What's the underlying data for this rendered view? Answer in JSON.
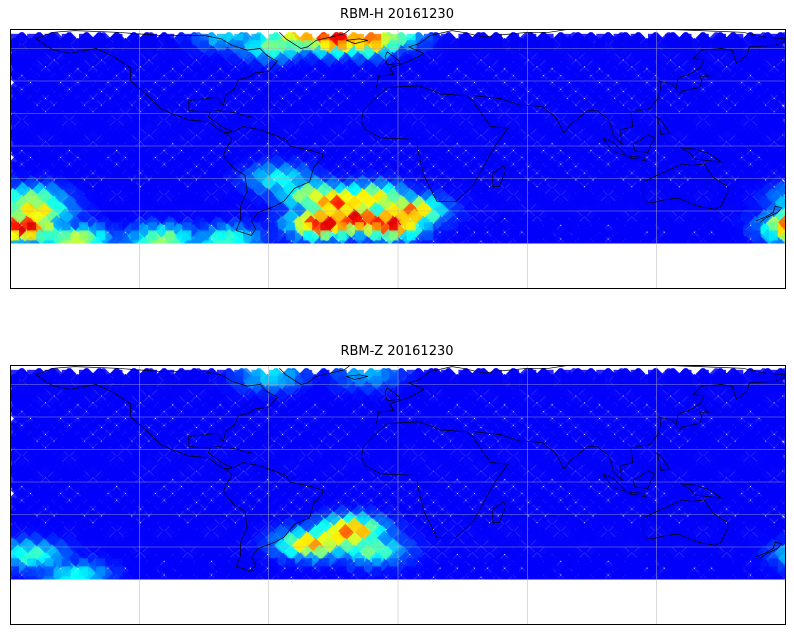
{
  "panels": [
    {
      "title": "RBM-H 20161230",
      "hotspots": [
        {
          "lon": -175,
          "lat": -50,
          "level": 0.95
        },
        {
          "lon": -168,
          "lat": -40,
          "level": 0.7
        },
        {
          "lon": -170,
          "lat": -33,
          "level": 0.55
        },
        {
          "lon": -45,
          "lat": 68,
          "level": 0.75
        },
        {
          "lon": -30,
          "lat": 66,
          "level": 0.9
        },
        {
          "lon": -15,
          "lat": 65,
          "level": 0.8
        },
        {
          "lon": -5,
          "lat": 68,
          "level": 0.55
        },
        {
          "lon": -58,
          "lat": 62,
          "level": 0.5
        },
        {
          "lon": -35,
          "lat": -48,
          "level": 0.95
        },
        {
          "lon": -20,
          "lat": -45,
          "level": 0.95
        },
        {
          "lon": -5,
          "lat": -48,
          "level": 0.95
        },
        {
          "lon": 5,
          "lat": -40,
          "level": 0.8
        },
        {
          "lon": -28,
          "lat": -35,
          "level": 0.85
        },
        {
          "lon": -40,
          "lat": -30,
          "level": 0.6
        },
        {
          "lon": -12,
          "lat": -32,
          "level": 0.7
        },
        {
          "lon": -150,
          "lat": -58,
          "level": 0.6
        },
        {
          "lon": -110,
          "lat": -58,
          "level": 0.55
        },
        {
          "lon": -80,
          "lat": -58,
          "level": 0.45
        },
        {
          "lon": -55,
          "lat": -20,
          "level": 0.4
        },
        {
          "lon": -80,
          "lat": 68,
          "level": 0.35
        }
      ]
    },
    {
      "title": "RBM-Z 20161230",
      "hotspots": [
        {
          "lon": -40,
          "lat": -38,
          "level": 0.75
        },
        {
          "lon": -30,
          "lat": -35,
          "level": 0.65
        },
        {
          "lon": -22,
          "lat": -30,
          "level": 0.8
        },
        {
          "lon": -12,
          "lat": -42,
          "level": 0.5
        },
        {
          "lon": -170,
          "lat": -45,
          "level": 0.45
        },
        {
          "lon": -150,
          "lat": -58,
          "level": 0.4
        },
        {
          "lon": -60,
          "lat": 65,
          "level": 0.35
        },
        {
          "lon": -15,
          "lat": 66,
          "level": 0.3
        }
      ]
    }
  ],
  "base_color": "#6a6af0",
  "background_level": 0.12,
  "colormap": "jet",
  "map_extent": {
    "lon": [
      -180,
      180
    ],
    "lat": [
      -60,
      70
    ]
  },
  "gridlines": {
    "lons": [
      -120,
      -60,
      0,
      60,
      120
    ],
    "lats": [
      -40,
      -20,
      0,
      20,
      40,
      60
    ]
  }
}
